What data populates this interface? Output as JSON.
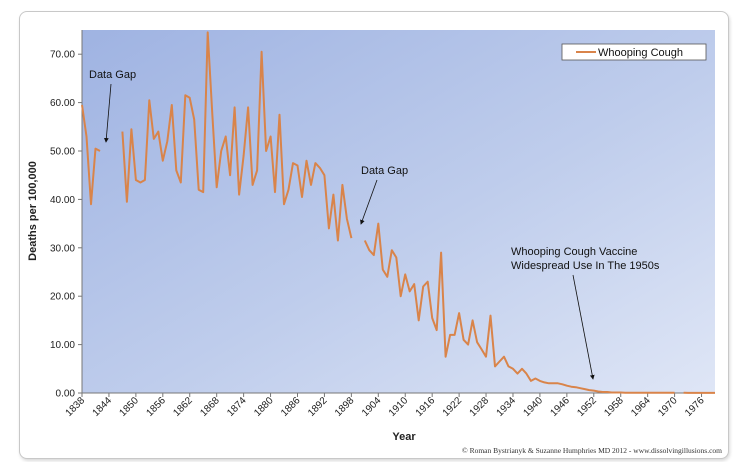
{
  "chart_data": {
    "type": "line",
    "title": "",
    "xlabel": "Year",
    "ylabel": "Deaths per 100,000",
    "xlim": [
      1838,
      1979
    ],
    "ylim": [
      0,
      75
    ],
    "grid": false,
    "legend_position": "top-right",
    "x_ticks": [
      "1838",
      "1844",
      "1850",
      "1856",
      "1862",
      "1868",
      "1874",
      "1880",
      "1886",
      "1892",
      "1898",
      "1904",
      "1910",
      "1916",
      "1922",
      "1928",
      "1934",
      "1940",
      "1946",
      "1952",
      "1958",
      "1964",
      "1970",
      "1976"
    ],
    "y_ticks": [
      "0.00",
      "10.00",
      "20.00",
      "30.00",
      "40.00",
      "50.00",
      "60.00",
      "70.00"
    ],
    "series": [
      {
        "name": "Whooping Cough",
        "color": "#d9844a",
        "segments": [
          [
            [
              1838,
              59.5
            ],
            [
              1839,
              53
            ],
            [
              1840,
              39
            ],
            [
              1841,
              50.5
            ],
            [
              1842,
              50
            ]
          ],
          [
            [
              1847,
              54
            ],
            [
              1848,
              39.5
            ],
            [
              1849,
              54.5
            ],
            [
              1850,
              44
            ],
            [
              1851,
              43.5
            ],
            [
              1852,
              44
            ],
            [
              1853,
              60.5
            ],
            [
              1854,
              52.5
            ],
            [
              1855,
              54
            ],
            [
              1856,
              48
            ],
            [
              1857,
              52
            ],
            [
              1858,
              59.5
            ],
            [
              1859,
              46
            ],
            [
              1860,
              43.5
            ],
            [
              1861,
              61.5
            ],
            [
              1862,
              61
            ],
            [
              1863,
              56.5
            ],
            [
              1864,
              42
            ],
            [
              1865,
              41.5
            ],
            [
              1866,
              74.5
            ],
            [
              1867,
              58
            ],
            [
              1868,
              42.5
            ],
            [
              1869,
              50
            ],
            [
              1870,
              53
            ],
            [
              1871,
              45
            ],
            [
              1872,
              59
            ],
            [
              1873,
              41
            ],
            [
              1874,
              49
            ],
            [
              1875,
              59
            ],
            [
              1876,
              43
            ],
            [
              1877,
              46
            ],
            [
              1878,
              70.5
            ],
            [
              1879,
              50
            ],
            [
              1880,
              53
            ],
            [
              1881,
              41.5
            ],
            [
              1882,
              57.5
            ],
            [
              1883,
              39
            ],
            [
              1884,
              42
            ],
            [
              1885,
              47.5
            ],
            [
              1886,
              47
            ],
            [
              1887,
              40.5
            ],
            [
              1888,
              48
            ],
            [
              1889,
              43
            ],
            [
              1890,
              47.5
            ],
            [
              1891,
              46.5
            ],
            [
              1892,
              45
            ],
            [
              1893,
              34
            ],
            [
              1894,
              41
            ],
            [
              1895,
              31.5
            ],
            [
              1896,
              43
            ],
            [
              1897,
              36
            ],
            [
              1898,
              32
            ]
          ],
          [
            [
              1901,
              31.5
            ],
            [
              1902,
              29.5
            ],
            [
              1903,
              28.5
            ],
            [
              1904,
              35
            ],
            [
              1905,
              25.5
            ],
            [
              1906,
              24
            ],
            [
              1907,
              29.5
            ],
            [
              1908,
              28
            ],
            [
              1909,
              20
            ],
            [
              1910,
              24.5
            ],
            [
              1911,
              21
            ],
            [
              1912,
              22.5
            ],
            [
              1913,
              15
            ],
            [
              1914,
              22
            ],
            [
              1915,
              23
            ],
            [
              1916,
              15.5
            ],
            [
              1917,
              13
            ],
            [
              1918,
              29
            ],
            [
              1919,
              7.5
            ],
            [
              1920,
              12
            ],
            [
              1921,
              12
            ],
            [
              1922,
              16.5
            ],
            [
              1923,
              11
            ],
            [
              1924,
              10
            ],
            [
              1925,
              15
            ],
            [
              1926,
              10.5
            ],
            [
              1927,
              9
            ],
            [
              1928,
              7.5
            ],
            [
              1929,
              16
            ],
            [
              1930,
              5.5
            ],
            [
              1931,
              6.5
            ],
            [
              1932,
              7.5
            ],
            [
              1933,
              5.5
            ],
            [
              1934,
              5
            ],
            [
              1935,
              4
            ],
            [
              1936,
              5
            ],
            [
              1937,
              4
            ],
            [
              1938,
              2.5
            ],
            [
              1939,
              3
            ],
            [
              1940,
              2.5
            ],
            [
              1941,
              2.2
            ],
            [
              1942,
              2
            ],
            [
              1943,
              2
            ],
            [
              1944,
              2
            ],
            [
              1945,
              1.8
            ],
            [
              1946,
              1.5
            ],
            [
              1947,
              1.3
            ],
            [
              1948,
              1.2
            ],
            [
              1949,
              1
            ],
            [
              1950,
              0.8
            ],
            [
              1951,
              0.6
            ],
            [
              1952,
              0.5
            ],
            [
              1953,
              0.3
            ],
            [
              1954,
              0.2
            ],
            [
              1955,
              0.2
            ],
            [
              1956,
              0.1
            ],
            [
              1957,
              0.1
            ],
            [
              1958,
              0.1
            ],
            [
              1959,
              0.05
            ],
            [
              1960,
              0.05
            ],
            [
              1961,
              0.05
            ],
            [
              1962,
              0.05
            ],
            [
              1963,
              0.05
            ],
            [
              1964,
              0.05
            ],
            [
              1965,
              0.05
            ],
            [
              1966,
              0.05
            ],
            [
              1967,
              0.05
            ],
            [
              1968,
              0.05
            ],
            [
              1969,
              0.05
            ],
            [
              1970,
              0.05
            ]
          ],
          [
            [
              1972,
              0.05
            ],
            [
              1973,
              0.03
            ],
            [
              1974,
              0.03
            ],
            [
              1975,
              0.03
            ],
            [
              1976,
              0.03
            ],
            [
              1977,
              0.03
            ],
            [
              1978,
              0.03
            ],
            [
              1979,
              0.03
            ]
          ]
        ]
      }
    ],
    "annotations": [
      {
        "text": "Data Gap",
        "target": [
          1843,
          52
        ]
      },
      {
        "text": "Data Gap",
        "target": [
          1900,
          35
        ]
      },
      {
        "text": "Whooping Cough Vaccine",
        "line2": "Widespread Use In The 1950s",
        "target": [
          1952,
          2
        ]
      }
    ],
    "credit": "© Roman Bystrianyk & Suzanne Humphries MD 2012 - www.dissolvingillusions.com"
  }
}
